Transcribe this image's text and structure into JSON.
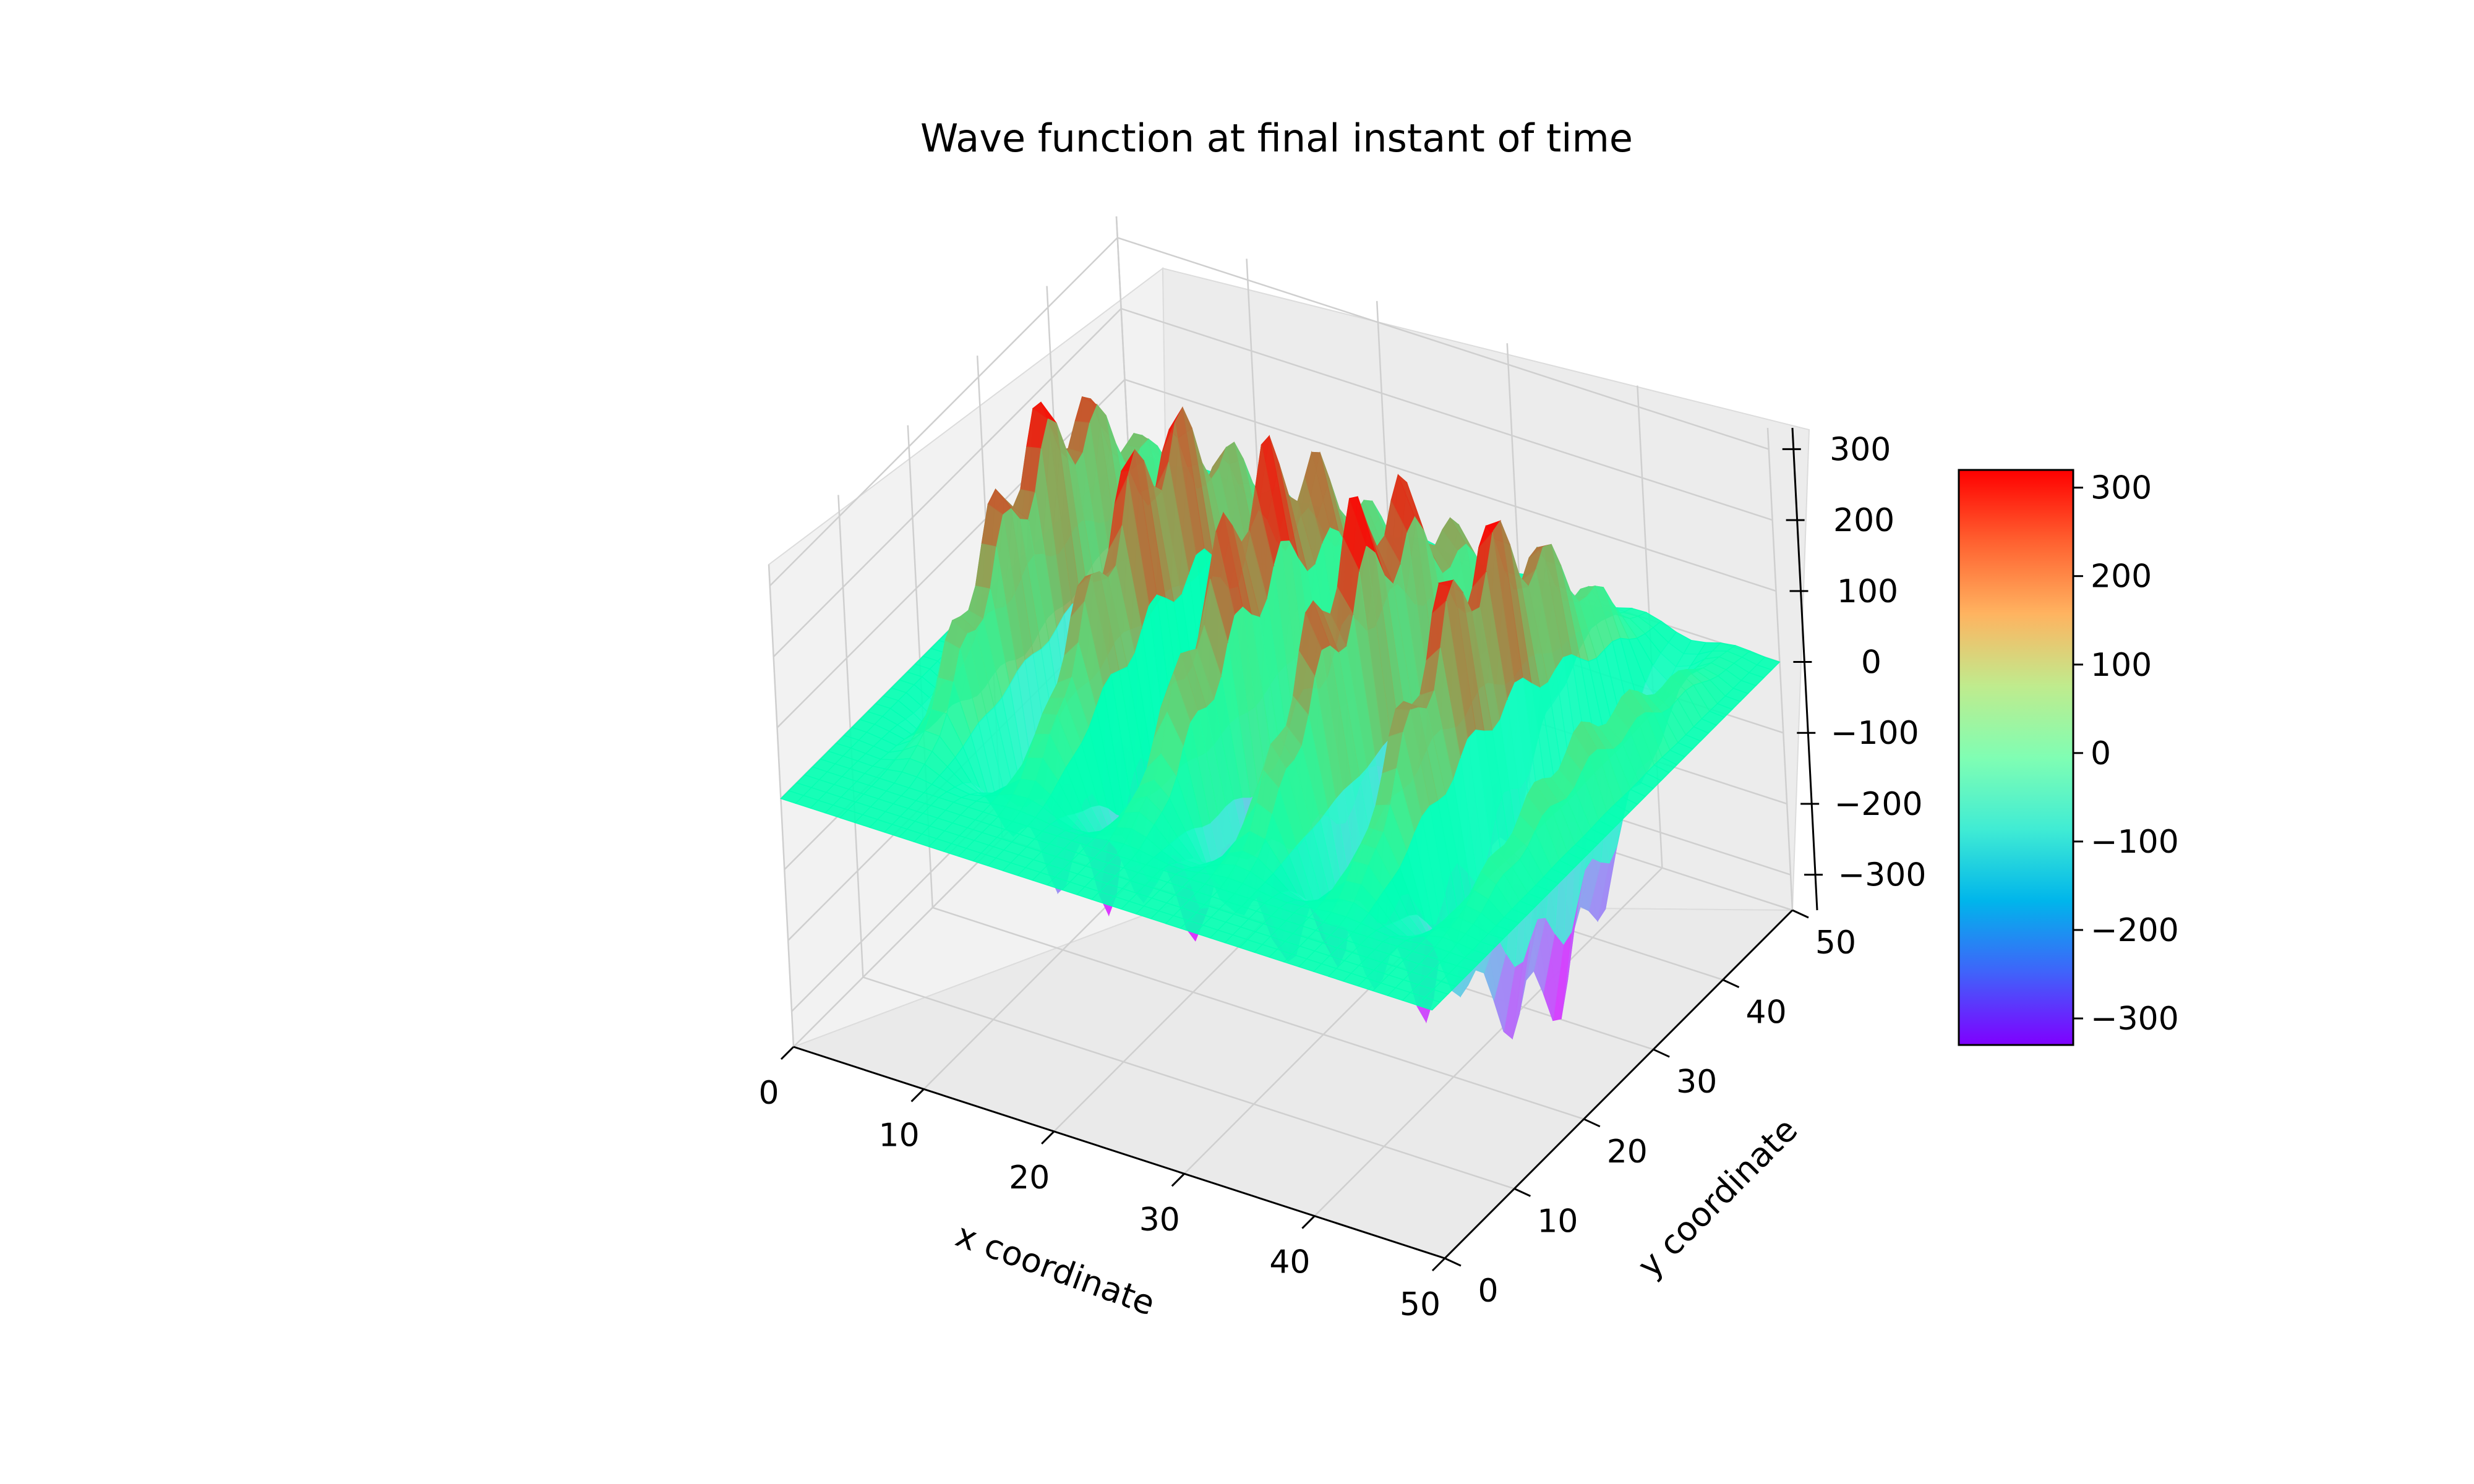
{
  "chart_data": {
    "type": "surface3d",
    "title": "Wave function at final instant of time",
    "xlabel": "x coordinate",
    "ylabel": "y coordinate",
    "zlabel": "",
    "xlim": [
      0,
      50
    ],
    "ylim": [
      0,
      50
    ],
    "zlim": [
      -350,
      330
    ],
    "x_ticks": [
      "0",
      "10",
      "20",
      "30",
      "40",
      "50"
    ],
    "y_ticks": [
      "0",
      "10",
      "20",
      "30",
      "40",
      "50"
    ],
    "z_ticks": [
      "300",
      "200",
      "100",
      "0",
      "−100",
      "−200",
      "−300"
    ],
    "colorbar": {
      "colormap": "rainbow",
      "range": [
        -330,
        320
      ],
      "ticks": [
        "300",
        "200",
        "100",
        "0",
        "−100",
        "−200",
        "−300"
      ]
    },
    "surface": {
      "description_values": {
        "ridge_count": 6,
        "ridge_peak_z": 310,
        "trough_z": -320,
        "flat_region_z": 0
      }
    },
    "grid": true,
    "pane_color": "#f2f2f2"
  }
}
